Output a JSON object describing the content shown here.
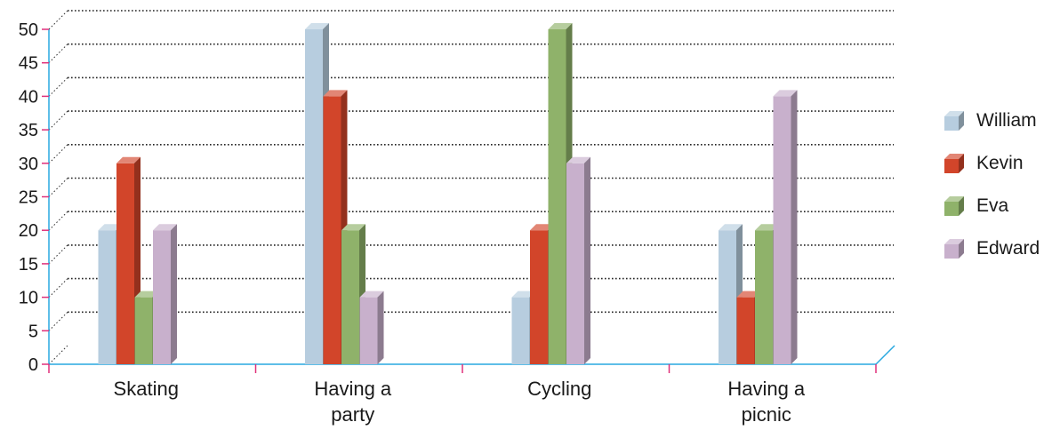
{
  "chart_data": {
    "type": "bar",
    "categories": [
      "Skating",
      "Having a party",
      "Cycling",
      "Having a picnic"
    ],
    "category_lines": [
      [
        "Skating"
      ],
      [
        "Having a",
        "party"
      ],
      [
        "Cycling"
      ],
      [
        "Having a",
        "picnic"
      ]
    ],
    "series": [
      {
        "name": "William",
        "values": [
          20,
          50,
          10,
          20
        ],
        "color": "#b7cddf"
      },
      {
        "name": "Kevin",
        "values": [
          30,
          40,
          20,
          10
        ],
        "color": "#d2452a"
      },
      {
        "name": "Eva",
        "values": [
          10,
          20,
          50,
          20
        ],
        "color": "#8fb26a"
      },
      {
        "name": "Edward",
        "values": [
          20,
          10,
          30,
          40
        ],
        "color": "#c8b0cc"
      }
    ],
    "y_ticks": [
      0,
      5,
      10,
      15,
      20,
      25,
      30,
      35,
      40,
      45,
      50
    ],
    "ylim": [
      0,
      50
    ],
    "grid": true,
    "legend_position": "right",
    "axis_color": "#29a8e0",
    "tick_color": "#e0307a"
  }
}
